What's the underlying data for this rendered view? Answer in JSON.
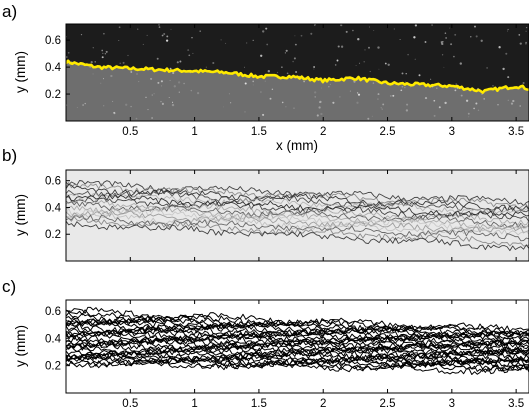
{
  "figure": {
    "panels": [
      {
        "letter": "a)",
        "ylabel": "y (mm)",
        "xlabel": "x (mm)",
        "kind": "image-with-front",
        "background": "#1c1c1c",
        "medium": "#6e6e6e",
        "front_color": "#ffea00"
      },
      {
        "letter": "b)",
        "ylabel": "y (mm)",
        "xlabel": "",
        "kind": "overlaid-fronts",
        "background": "#e9e9e9",
        "line_color": "#000000"
      },
      {
        "letter": "c)",
        "ylabel": "y (mm)",
        "xlabel": "",
        "kind": "overlaid-fronts",
        "background": "#ffffff",
        "line_color": "#000000"
      }
    ],
    "x_ticks": [
      "0.5",
      "1",
      "1.5",
      "2",
      "2.5",
      "3",
      "3.5"
    ],
    "y_ticks": [
      "0.6",
      "0.4",
      "0.2"
    ]
  },
  "chart_data": [
    {
      "type": "line",
      "title": "",
      "xlabel": "x (mm)",
      "ylabel": "y (mm)",
      "xlim": [
        0.0,
        3.6
      ],
      "ylim": [
        0.0,
        0.72
      ],
      "grid": false,
      "series": [
        {
          "x": [
            0.0,
            0.25,
            0.5,
            0.75,
            1.0,
            1.25,
            1.5,
            1.75,
            2.0,
            2.25,
            2.5,
            2.75,
            3.0,
            3.25,
            3.5,
            3.6
          ],
          "y": [
            0.44,
            0.4,
            0.39,
            0.38,
            0.37,
            0.36,
            0.33,
            0.33,
            0.3,
            0.32,
            0.28,
            0.27,
            0.26,
            0.22,
            0.26,
            0.24
          ]
        }
      ]
    },
    {
      "type": "line",
      "title": "",
      "xlabel": "",
      "ylabel": "y (mm)",
      "xlim": [
        0.0,
        3.6
      ],
      "ylim": [
        0.0,
        0.68
      ],
      "grid": false,
      "front_count": 16,
      "start_y": [
        0.58,
        0.56,
        0.54,
        0.52,
        0.5,
        0.48,
        0.46,
        0.44,
        0.42,
        0.4,
        0.38,
        0.36,
        0.34,
        0.32,
        0.3,
        0.28
      ],
      "end_y": [
        0.44,
        0.42,
        0.4,
        0.38,
        0.36,
        0.34,
        0.32,
        0.3,
        0.28,
        0.26,
        0.24,
        0.22,
        0.2,
        0.18,
        0.14,
        0.1
      ]
    },
    {
      "type": "line",
      "title": "",
      "xlabel": "",
      "ylabel": "y (mm)",
      "xlim": [
        0.0,
        3.6
      ],
      "ylim": [
        0.0,
        0.68
      ],
      "grid": false,
      "front_count": 30,
      "start_y": [
        0.6,
        0.58,
        0.56,
        0.55,
        0.54,
        0.52,
        0.51,
        0.5,
        0.48,
        0.47,
        0.46,
        0.44,
        0.43,
        0.42,
        0.4,
        0.39,
        0.38,
        0.36,
        0.35,
        0.34,
        0.32,
        0.31,
        0.3,
        0.28,
        0.27,
        0.26,
        0.25,
        0.24,
        0.23,
        0.22
      ],
      "end_y": [
        0.46,
        0.45,
        0.44,
        0.43,
        0.42,
        0.41,
        0.4,
        0.39,
        0.38,
        0.37,
        0.36,
        0.35,
        0.34,
        0.33,
        0.32,
        0.31,
        0.3,
        0.29,
        0.28,
        0.27,
        0.26,
        0.25,
        0.24,
        0.23,
        0.22,
        0.21,
        0.2,
        0.19,
        0.18,
        0.16
      ]
    }
  ]
}
